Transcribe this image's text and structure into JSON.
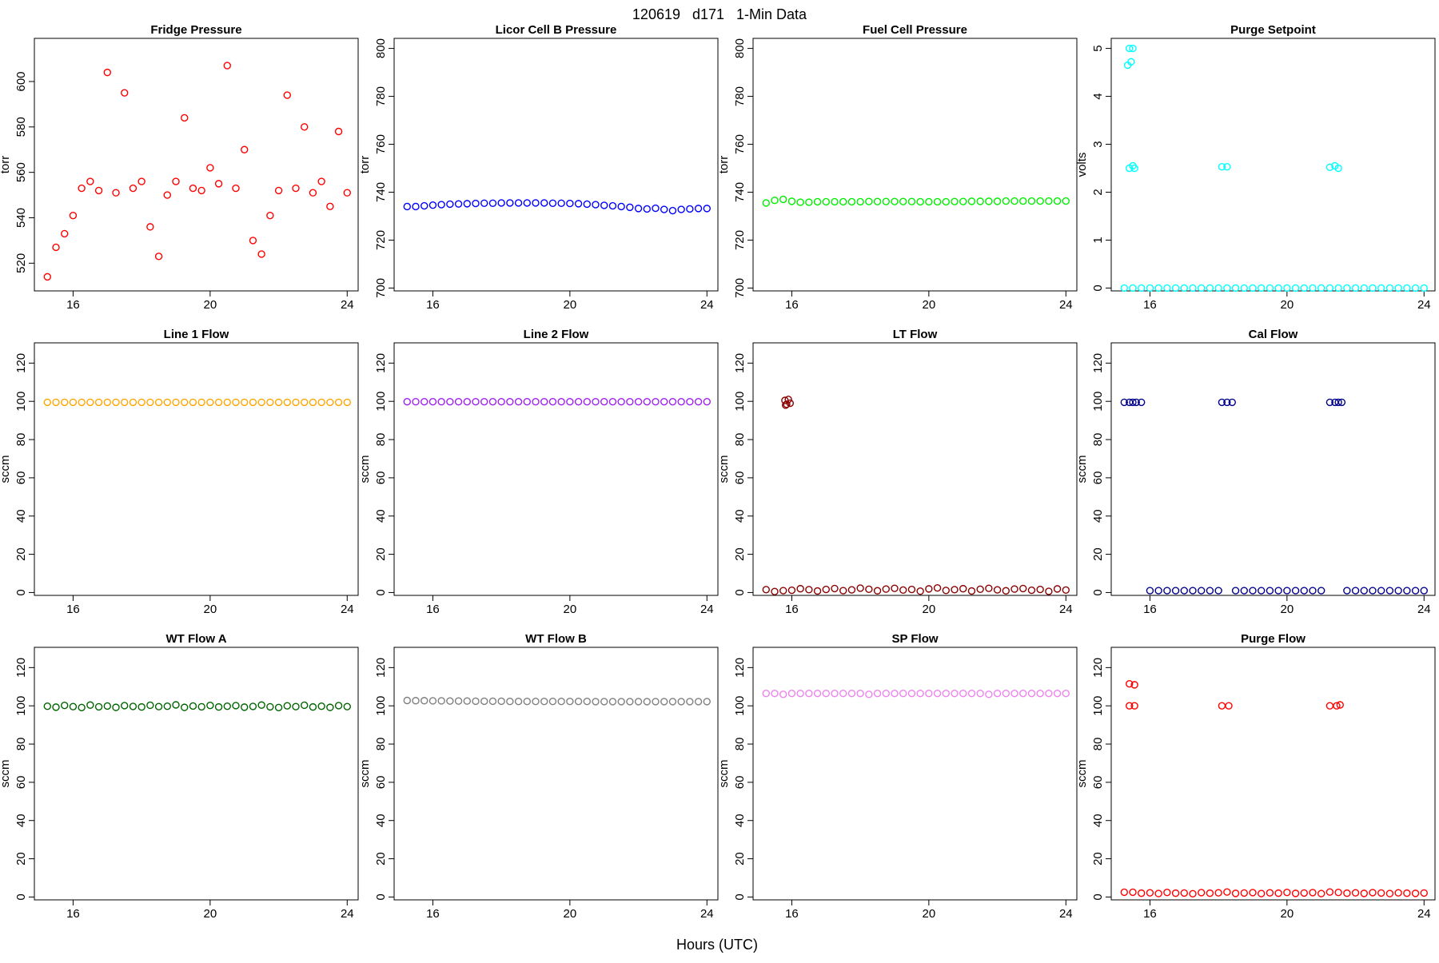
{
  "title": "120619   d171   1-Min Data",
  "xlabel": "Hours (UTC)",
  "chart_data": [
    {
      "type": "scatter",
      "title": "Fridge Pressure",
      "ylabel": "torr",
      "color": "#ff0000",
      "x": [
        15.25,
        15.5,
        15.75,
        16,
        16.25,
        16.5,
        16.75,
        17,
        17.25,
        17.5,
        17.75,
        18,
        18.25,
        18.5,
        18.75,
        19,
        19.25,
        19.5,
        19.75,
        20,
        20.25,
        20.5,
        20.75,
        21,
        21.25,
        21.5,
        21.75,
        22,
        22.25,
        22.5,
        22.75,
        23,
        23.25,
        23.5,
        23.75,
        24
      ],
      "values": [
        514,
        527,
        533,
        541,
        553,
        556,
        552,
        604,
        551,
        595,
        553,
        556,
        536,
        523,
        550,
        556,
        584,
        553,
        552,
        562,
        555,
        607,
        553,
        570,
        530,
        524,
        541,
        552,
        594,
        553,
        580,
        551,
        556,
        545,
        578,
        551
      ],
      "xlim": [
        14.87,
        24.32
      ],
      "ylim": [
        507.8,
        619
      ],
      "xticks": [
        16,
        20,
        24
      ],
      "yticks": [
        520,
        540,
        560,
        580,
        600
      ]
    },
    {
      "type": "scatter",
      "title": "Licor Cell B Pressure",
      "ylabel": "torr",
      "color": "#0000ff",
      "x": [
        15.25,
        15.5,
        15.75,
        16,
        16.25,
        16.5,
        16.75,
        17,
        17.25,
        17.5,
        17.75,
        18,
        18.25,
        18.5,
        18.75,
        19,
        19.25,
        19.5,
        19.75,
        20,
        20.25,
        20.5,
        20.75,
        21,
        21.25,
        21.5,
        21.75,
        22,
        22.25,
        22.5,
        22.75,
        23,
        23.25,
        23.5,
        23.75,
        24
      ],
      "values": [
        734,
        734,
        734.3,
        734.6,
        734.8,
        735,
        735.1,
        735.2,
        735.3,
        735.4,
        735.4,
        735.5,
        735.5,
        735.5,
        735.5,
        735.5,
        735.5,
        735.4,
        735.4,
        735.3,
        735.2,
        735,
        734.8,
        734.5,
        734.3,
        734,
        733.7,
        733.2,
        733,
        733.3,
        732.8,
        732.3,
        732.8,
        733,
        733.2,
        733.2
      ],
      "xlim": [
        14.87,
        24.32
      ],
      "ylim": [
        698.8,
        804.2
      ],
      "xticks": [
        16,
        20,
        24
      ],
      "yticks": [
        700,
        720,
        740,
        760,
        780,
        800
      ]
    },
    {
      "type": "scatter",
      "title": "Fuel Cell Pressure",
      "ylabel": "torr",
      "color": "#00ee00",
      "x": [
        15.25,
        15.5,
        15.75,
        16,
        16.25,
        16.5,
        16.75,
        17,
        17.25,
        17.5,
        17.75,
        18,
        18.25,
        18.5,
        18.75,
        19,
        19.25,
        19.5,
        19.75,
        20,
        20.25,
        20.5,
        20.75,
        21,
        21.25,
        21.5,
        21.75,
        22,
        22.25,
        22.5,
        22.75,
        23,
        23.25,
        23.5,
        23.75,
        24
      ],
      "values": [
        735.5,
        736.6,
        737,
        736.2,
        735.8,
        735.8,
        736,
        736,
        736,
        736,
        736,
        736,
        736.1,
        736.1,
        736.1,
        736.1,
        736.1,
        736.1,
        736,
        736,
        736,
        736,
        736.1,
        736.1,
        736.2,
        736.2,
        736.2,
        736.2,
        736.3,
        736.3,
        736.3,
        736.3,
        736.3,
        736.3,
        736.3,
        736.3
      ],
      "xlim": [
        14.87,
        24.32
      ],
      "ylim": [
        698.8,
        804.2
      ],
      "xticks": [
        16,
        20,
        24
      ],
      "yticks": [
        700,
        720,
        740,
        760,
        780,
        800
      ]
    },
    {
      "type": "scatter",
      "title": "Purge Setpoint",
      "ylabel": "volts",
      "color": "#00ffff",
      "x": [
        15.25,
        15.5,
        15.75,
        16,
        16.25,
        16.5,
        16.75,
        17,
        17.25,
        17.5,
        17.75,
        18,
        18.25,
        18.5,
        18.75,
        19,
        19.25,
        19.5,
        19.75,
        20,
        20.25,
        20.5,
        20.75,
        21,
        21.25,
        21.5,
        21.75,
        22,
        22.25,
        22.5,
        22.75,
        23,
        23.25,
        23.5,
        23.75,
        24,
        15.35,
        15.4,
        15.5,
        15.45,
        15.4,
        15.5,
        15.55,
        18.1,
        18.25,
        21.25,
        21.4,
        21.5
      ],
      "values": [
        0,
        0,
        0,
        0,
        0,
        0,
        0,
        0,
        0,
        0,
        0,
        0,
        0,
        0,
        0,
        0,
        0,
        0,
        0,
        0,
        0,
        0,
        0,
        0,
        0,
        0,
        0,
        0,
        0,
        0,
        0,
        0,
        0,
        0,
        0,
        0,
        4.65,
        5,
        5,
        4.72,
        2.5,
        2.55,
        2.5,
        2.53,
        2.53,
        2.52,
        2.55,
        2.5
      ],
      "xlim": [
        14.87,
        24.32
      ],
      "ylim": [
        -0.06,
        5.21
      ],
      "xticks": [
        16,
        20,
        24
      ],
      "yticks": [
        0,
        1,
        2,
        3,
        4,
        5
      ]
    },
    {
      "type": "scatter",
      "title": "Line 1 Flow",
      "ylabel": "sccm",
      "color": "#ffa500",
      "x": [
        15.25,
        15.5,
        15.75,
        16,
        16.25,
        16.5,
        16.75,
        17,
        17.25,
        17.5,
        17.75,
        18,
        18.25,
        18.5,
        18.75,
        19,
        19.25,
        19.5,
        19.75,
        20,
        20.25,
        20.5,
        20.75,
        21,
        21.25,
        21.5,
        21.75,
        22,
        22.25,
        22.5,
        22.75,
        23,
        23.25,
        23.5,
        23.75,
        24
      ],
      "values": [
        99.5,
        99.5,
        99.5,
        99.5,
        99.5,
        99.5,
        99.5,
        99.5,
        99.5,
        99.5,
        99.5,
        99.5,
        99.5,
        99.5,
        99.5,
        99.5,
        99.5,
        99.5,
        99.5,
        99.5,
        99.5,
        99.5,
        99.5,
        99.5,
        99.5,
        99.5,
        99.5,
        99.5,
        99.5,
        99.5,
        99.5,
        99.5,
        99.5,
        99.5,
        99.5,
        99.5
      ],
      "xlim": [
        14.87,
        24.32
      ],
      "ylim": [
        -1.5,
        130.6
      ],
      "xticks": [
        16,
        20,
        24
      ],
      "yticks": [
        0,
        20,
        40,
        60,
        80,
        100,
        120
      ]
    },
    {
      "type": "scatter",
      "title": "Line 2 Flow",
      "ylabel": "sccm",
      "color": "#a020f0",
      "x": [
        15.25,
        15.5,
        15.75,
        16,
        16.25,
        16.5,
        16.75,
        17,
        17.25,
        17.5,
        17.75,
        18,
        18.25,
        18.5,
        18.75,
        19,
        19.25,
        19.5,
        19.75,
        20,
        20.25,
        20.5,
        20.75,
        21,
        21.25,
        21.5,
        21.75,
        22,
        22.25,
        22.5,
        22.75,
        23,
        23.25,
        23.5,
        23.75,
        24
      ],
      "values": [
        99.8,
        99.8,
        99.8,
        99.8,
        99.8,
        99.8,
        99.8,
        99.8,
        99.8,
        99.8,
        99.8,
        99.8,
        99.8,
        99.8,
        99.8,
        99.8,
        99.8,
        99.8,
        99.8,
        99.8,
        99.8,
        99.8,
        99.8,
        99.8,
        99.8,
        99.8,
        99.8,
        99.8,
        99.8,
        99.8,
        99.8,
        99.8,
        99.8,
        99.8,
        99.8,
        99.8
      ],
      "xlim": [
        14.87,
        24.32
      ],
      "ylim": [
        -1.5,
        130.6
      ],
      "xticks": [
        16,
        20,
        24
      ],
      "yticks": [
        0,
        20,
        40,
        60,
        80,
        100,
        120
      ]
    },
    {
      "type": "scatter",
      "title": "LT Flow",
      "ylabel": "sccm",
      "color": "#8b0000",
      "x": [
        15.25,
        15.5,
        15.75,
        16,
        16.25,
        16.5,
        16.75,
        17,
        17.25,
        17.5,
        17.75,
        18,
        18.25,
        18.5,
        18.75,
        19,
        19.25,
        19.5,
        19.75,
        20,
        20.25,
        20.5,
        20.75,
        21,
        21.25,
        21.5,
        21.75,
        22,
        22.25,
        22.5,
        22.75,
        23,
        23.25,
        23.5,
        23.75,
        24,
        15.8,
        15.85,
        15.9,
        15.95,
        15.82
      ],
      "values": [
        1.5,
        0.5,
        1,
        1.2,
        2,
        1.5,
        0.8,
        1.6,
        2.1,
        1,
        1.4,
        2.3,
        1.7,
        0.9,
        1.8,
        2.2,
        1.3,
        1.6,
        0.7,
        1.9,
        2.4,
        1.1,
        1.5,
        2,
        0.8,
        1.7,
        2.2,
        1.4,
        0.9,
        1.8,
        2.1,
        1.2,
        1.6,
        0.6,
        1.9,
        1.3,
        100.5,
        98.5,
        101,
        99,
        98
      ],
      "xlim": [
        14.87,
        24.32
      ],
      "ylim": [
        -1.5,
        130.6
      ],
      "xticks": [
        16,
        20,
        24
      ],
      "yticks": [
        0,
        20,
        40,
        60,
        80,
        100,
        120
      ]
    },
    {
      "type": "scatter",
      "title": "Cal Flow",
      "ylabel": "sccm",
      "color": "#00008b",
      "x": [
        15.25,
        15.5,
        15.75,
        16,
        16.25,
        16.5,
        16.75,
        17,
        17.25,
        17.5,
        17.75,
        18,
        18.25,
        18.5,
        18.75,
        19,
        19.25,
        19.5,
        19.75,
        20,
        20.25,
        20.5,
        20.75,
        21,
        21.25,
        21.5,
        21.75,
        22,
        22.25,
        22.5,
        22.75,
        23,
        23.25,
        23.5,
        23.75,
        24,
        15.4,
        15.6,
        18.1,
        18.4,
        21.4,
        21.6
      ],
      "values": [
        99.5,
        99.5,
        99.5,
        1,
        1,
        1,
        1,
        1,
        1,
        1,
        1,
        1,
        99.5,
        1,
        1,
        1,
        1,
        1,
        1,
        1,
        1,
        1,
        1,
        1,
        99.5,
        99.5,
        1,
        1,
        1,
        1,
        1,
        1,
        1,
        1,
        1,
        1,
        99.5,
        99.5,
        99.5,
        99.5,
        99.5,
        99.5
      ],
      "xlim": [
        14.87,
        24.32
      ],
      "ylim": [
        -1.5,
        130.6
      ],
      "xticks": [
        16,
        20,
        24
      ],
      "yticks": [
        0,
        20,
        40,
        60,
        80,
        100,
        120
      ]
    },
    {
      "type": "scatter",
      "title": "WT Flow A",
      "ylabel": "sccm",
      "color": "#006400",
      "x": [
        15.25,
        15.5,
        15.75,
        16,
        16.25,
        16.5,
        16.75,
        17,
        17.25,
        17.5,
        17.75,
        18,
        18.25,
        18.5,
        18.75,
        19,
        19.25,
        19.5,
        19.75,
        20,
        20.25,
        20.5,
        20.75,
        21,
        21.25,
        21.5,
        21.75,
        22,
        22.25,
        22.5,
        22.75,
        23,
        23.25,
        23.5,
        23.75,
        24
      ],
      "values": [
        99.8,
        99.3,
        100.2,
        99.6,
        99.1,
        100.4,
        99.5,
        99.9,
        99.2,
        100.1,
        99.7,
        99.4,
        100.3,
        99.6,
        99.8,
        100.5,
        99.2,
        99.9,
        99.5,
        100.2,
        99.4,
        99.8,
        100.1,
        99.3,
        99.7,
        100.4,
        99.5,
        99.1,
        100,
        99.6,
        100.3,
        99.4,
        99.8,
        99.2,
        100.1,
        99.6
      ],
      "xlim": [
        14.87,
        24.32
      ],
      "ylim": [
        -1.5,
        130.6
      ],
      "xticks": [
        16,
        20,
        24
      ],
      "yticks": [
        0,
        20,
        40,
        60,
        80,
        100,
        120
      ]
    },
    {
      "type": "scatter",
      "title": "WT Flow B",
      "ylabel": "sccm",
      "color": "#7f7f7f",
      "x": [
        15.25,
        15.5,
        15.75,
        16,
        16.25,
        16.5,
        16.75,
        17,
        17.25,
        17.5,
        17.75,
        18,
        18.25,
        18.5,
        18.75,
        19,
        19.25,
        19.5,
        19.75,
        20,
        20.25,
        20.5,
        20.75,
        21,
        21.25,
        21.5,
        21.75,
        22,
        22.25,
        22.5,
        22.75,
        23,
        23.25,
        23.5,
        23.75,
        24
      ],
      "values": [
        102.8,
        102.7,
        102.7,
        102.6,
        102.6,
        102.5,
        102.5,
        102.5,
        102.4,
        102.4,
        102.4,
        102.4,
        102.3,
        102.3,
        102.3,
        102.3,
        102.3,
        102.3,
        102.3,
        102.3,
        102.3,
        102.3,
        102.2,
        102.2,
        102.2,
        102.2,
        102.2,
        102.2,
        102.2,
        102.2,
        102.2,
        102.2,
        102.2,
        102.2,
        102.2,
        102.2
      ],
      "xlim": [
        14.87,
        24.32
      ],
      "ylim": [
        -1.5,
        130.6
      ],
      "xticks": [
        16,
        20,
        24
      ],
      "yticks": [
        0,
        20,
        40,
        60,
        80,
        100,
        120
      ]
    },
    {
      "type": "scatter",
      "title": "SP Flow",
      "ylabel": "sccm",
      "color": "#ee82ee",
      "x": [
        15.25,
        15.5,
        15.75,
        16,
        16.25,
        16.5,
        16.75,
        17,
        17.25,
        17.5,
        17.75,
        18,
        18.25,
        18.5,
        18.75,
        19,
        19.25,
        19.5,
        19.75,
        20,
        20.25,
        20.5,
        20.75,
        21,
        21.25,
        21.5,
        21.75,
        22,
        22.25,
        22.5,
        22.75,
        23,
        23.25,
        23.5,
        23.75,
        24
      ],
      "values": [
        106.5,
        106.5,
        106,
        106.5,
        106.5,
        106.5,
        106.5,
        106.5,
        106.5,
        106.5,
        106.5,
        106.5,
        106,
        106.5,
        106.5,
        106.5,
        106.5,
        106.5,
        106.5,
        106.5,
        106.5,
        106.5,
        106.5,
        106.5,
        106.5,
        106.5,
        106,
        106.5,
        106.5,
        106.5,
        106.5,
        106.5,
        106.5,
        106.5,
        106.5,
        106.5
      ],
      "xlim": [
        14.87,
        24.32
      ],
      "ylim": [
        -1.5,
        130.6
      ],
      "xticks": [
        16,
        20,
        24
      ],
      "yticks": [
        0,
        20,
        40,
        60,
        80,
        100,
        120
      ]
    },
    {
      "type": "scatter",
      "title": "Purge Flow",
      "ylabel": "sccm",
      "color": "#ff0000",
      "x": [
        15.25,
        15.5,
        15.75,
        16,
        16.25,
        16.5,
        16.75,
        17,
        17.25,
        17.5,
        17.75,
        18,
        18.25,
        18.5,
        18.75,
        19,
        19.25,
        19.5,
        19.75,
        20,
        20.25,
        20.5,
        20.75,
        21,
        21.25,
        21.5,
        21.75,
        22,
        22.25,
        22.5,
        22.75,
        23,
        23.25,
        23.5,
        23.75,
        24,
        15.4,
        15.55,
        15.4,
        15.55,
        18.1,
        18.3,
        21.25,
        21.45,
        21.55
      ],
      "values": [
        2.5,
        2.5,
        2,
        2.2,
        1.8,
        2.4,
        2,
        2.1,
        1.7,
        2.3,
        2,
        2.2,
        2.6,
        1.9,
        2.1,
        2.3,
        1.8,
        2.2,
        2,
        2.4,
        1.9,
        2.1,
        2.3,
        1.8,
        2.6,
        2.4,
        2,
        2.2,
        1.9,
        2.3,
        2.1,
        1.8,
        2.2,
        2,
        1.9,
        2.1,
        111.5,
        111,
        100,
        100,
        100,
        100,
        100,
        100,
        100.5
      ],
      "xlim": [
        14.87,
        24.32
      ],
      "ylim": [
        -1.5,
        130.6
      ],
      "xticks": [
        16,
        20,
        24
      ],
      "yticks": [
        0,
        20,
        40,
        60,
        80,
        100,
        120
      ]
    }
  ]
}
